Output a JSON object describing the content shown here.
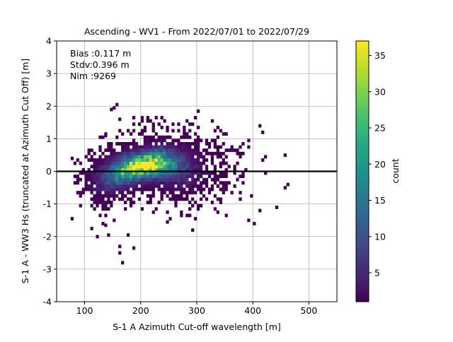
{
  "chart_data": {
    "type": "heatmap",
    "title": "Ascending - WV1 - From 2022/07/01 to 2022/07/29",
    "xlabel": "S-1 A Azimuth Cut-off wavelength [m]",
    "ylabel": "S-1 A - WW3 Hs (truncated at Azimuth Cut Off) [m]",
    "xlim": [
      50,
      550
    ],
    "ylim": [
      -4,
      4
    ],
    "xticks": [
      100,
      200,
      300,
      400,
      500
    ],
    "yticks": [
      -4,
      -3,
      -2,
      -1,
      0,
      1,
      2,
      3,
      4
    ],
    "grid": true,
    "reference_line_y": 0,
    "stats": [
      "Bias :0.117 m",
      "Stdv:0.396 m",
      "Nim :9269"
    ],
    "colorbar": {
      "label": "count",
      "min": 1,
      "max": 37,
      "ticks": [
        5,
        10,
        15,
        20,
        25,
        30,
        35
      ],
      "colormap": "viridis"
    },
    "density_model": {
      "description": "2D histogram of counts; dense core along a rising ridge",
      "bin_size_x": 5,
      "bin_size_y": 0.1,
      "ridge": [
        {
          "x": 110,
          "y": -0.3
        },
        {
          "x": 150,
          "y": -0.1
        },
        {
          "x": 180,
          "y": 0.1
        },
        {
          "x": 210,
          "y": 0.2
        },
        {
          "x": 240,
          "y": 0.25
        },
        {
          "x": 280,
          "y": 0.1
        }
      ],
      "peak_count": 37,
      "extent_x": [
        75,
        460
      ],
      "extent_y": [
        -2.85,
        2.05
      ]
    }
  }
}
